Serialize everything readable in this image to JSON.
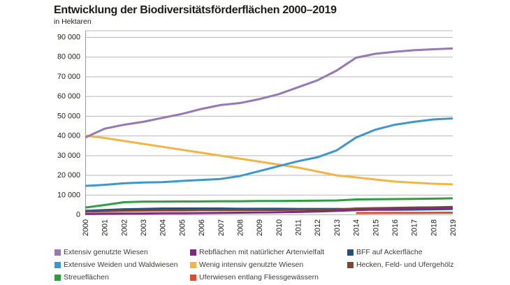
{
  "page": {
    "title": "Entwicklung der Biodiversitätsförderflächen 2000–2019",
    "subtitle": "in Hektaren"
  },
  "chart_data": {
    "type": "line",
    "title": "Entwicklung der Biodiversitätsförderflächen 2000–2019",
    "subtitle": "in Hektaren",
    "ylabel": "Hektaren",
    "xlabel": "",
    "grid": true,
    "legend_position": "bottom",
    "ylim": [
      0,
      90000
    ],
    "yticks": [
      0,
      10000,
      20000,
      30000,
      40000,
      50000,
      60000,
      70000,
      80000,
      90000
    ],
    "ytick_labels": [
      "0",
      "10 000",
      "20 000",
      "30 000",
      "40 000",
      "50 000",
      "60 000",
      "70 000",
      "80 000",
      "90 000"
    ],
    "x": [
      2000,
      2001,
      2002,
      2003,
      2004,
      2005,
      2006,
      2007,
      2008,
      2009,
      2010,
      2011,
      2012,
      2013,
      2014,
      2015,
      2016,
      2017,
      2018,
      2019
    ],
    "axis_color": "#9a9a9a",
    "grid_color": "#b7b7b7",
    "series": [
      {
        "name": "Extensiv genutzte Wiesen",
        "color": "#9678b4",
        "values": [
          39000,
          43500,
          45500,
          47000,
          49000,
          51000,
          53500,
          55500,
          56500,
          58500,
          61000,
          64500,
          68000,
          73000,
          79500,
          81500,
          82500,
          83300,
          83800,
          84200
        ]
      },
      {
        "name": "Extensive Weiden und Waldwiesen",
        "color": "#3d97cb",
        "values": [
          14500,
          15000,
          15800,
          16200,
          16400,
          17000,
          17500,
          18000,
          19500,
          22000,
          24500,
          27000,
          29000,
          32500,
          39000,
          43000,
          45500,
          47000,
          48200,
          48700
        ]
      },
      {
        "name": "Streueflächen",
        "color": "#2f9e41",
        "values": [
          3500,
          4800,
          6200,
          6500,
          6500,
          6600,
          6600,
          6700,
          6700,
          6800,
          6800,
          6900,
          7000,
          7100,
          7600,
          7700,
          7800,
          7900,
          8000,
          8200
        ]
      },
      {
        "name": "Rebflächen mit natürlicher Artenvielfalt",
        "color": "#7c2b80",
        "values": [
          300,
          400,
          500,
          500,
          600,
          600,
          700,
          800,
          900,
          1000,
          1100,
          1300,
          1500,
          1800,
          2200,
          2500,
          2800,
          3000,
          3100,
          3200
        ]
      },
      {
        "name": "Wenig intensiv genutzte Wiesen",
        "color": "#f0b545",
        "values": [
          40000,
          38800,
          37300,
          35800,
          34300,
          32800,
          31300,
          29800,
          28300,
          26800,
          25300,
          23800,
          21800,
          19800,
          18800,
          17700,
          16700,
          16100,
          15600,
          15300
        ]
      },
      {
        "name": "Uferwiesen entlang Fliessgewässern",
        "color": "#e04b2d",
        "values": [
          null,
          null,
          null,
          null,
          null,
          null,
          null,
          null,
          null,
          null,
          null,
          null,
          null,
          null,
          700,
          750,
          800,
          800,
          850,
          900
        ]
      },
      {
        "name": "BFF auf Ackerfläche",
        "color": "#1f4e8b",
        "values": [
          1800,
          2200,
          2600,
          2800,
          3000,
          3000,
          3000,
          3000,
          2900,
          2900,
          2900,
          2800,
          2800,
          2800,
          2700,
          2400,
          2400,
          2500,
          2600,
          2800
        ]
      },
      {
        "name": "Hecken, Feld- und Ufergehölz",
        "color": "#7a4a2e",
        "values": [
          1500,
          1700,
          1900,
          2000,
          2100,
          2100,
          2200,
          2200,
          2200,
          2300,
          2300,
          2400,
          2400,
          2500,
          3000,
          3200,
          3300,
          3500,
          3600,
          3800
        ]
      }
    ],
    "legend_columns": [
      [
        0,
        1,
        2
      ],
      [
        3,
        4,
        5
      ],
      [
        6,
        7
      ]
    ]
  }
}
